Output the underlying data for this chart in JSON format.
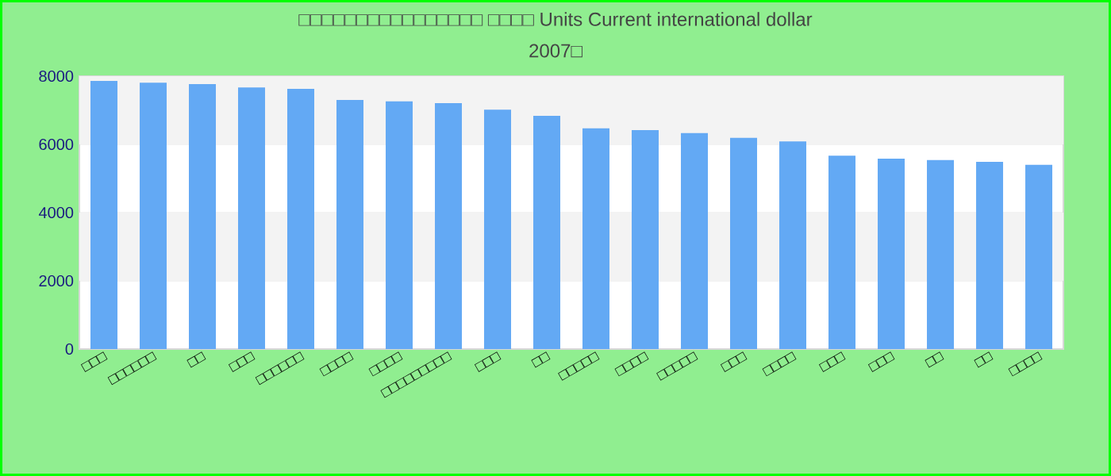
{
  "chart_data": {
    "type": "bar",
    "title": "□□□□□□□□□□□□□□□□ □□□□ Units Current international dollar",
    "subtitle": "2007□",
    "categories": [
      "□□□",
      "□□□□□□",
      "□□",
      "□□□",
      "□□□□□□",
      "□□□□",
      "□□□□",
      "□□□□□□□□□",
      "□□□",
      "□□",
      "□□□□□",
      "□□□□",
      "□□□□□",
      "□□□",
      "□□□□",
      "□□□",
      "□□□",
      "□□",
      "□□",
      "□□□□"
    ],
    "values": [
      7860,
      7810,
      7770,
      7670,
      7630,
      7300,
      7260,
      7210,
      7020,
      6840,
      6470,
      6420,
      6330,
      6190,
      6090,
      5670,
      5580,
      5540,
      5490,
      5400
    ],
    "color": "#63a9f4",
    "ylim": [
      0,
      8000
    ],
    "yticks": [
      0,
      2000,
      4000,
      6000,
      8000
    ],
    "grid": "y"
  }
}
